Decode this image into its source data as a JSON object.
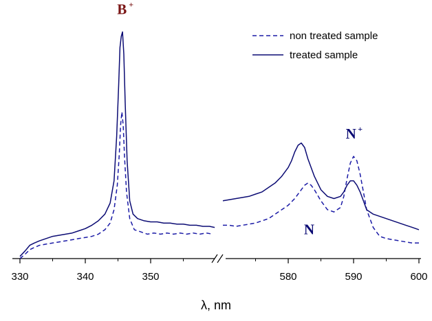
{
  "chart_data": {
    "type": "line",
    "title": "",
    "xlabel": "λ, nm",
    "ylabel": "",
    "axis_break": true,
    "segments": [
      {
        "xlim": [
          330,
          360
        ],
        "ticks": [
          330,
          340,
          350
        ]
      },
      {
        "xlim": [
          570,
          600
        ],
        "ticks": [
          580,
          590,
          600
        ]
      }
    ],
    "ylim": [
      0,
      100
    ],
    "legend_position": "top-right",
    "grid": false,
    "series": [
      {
        "name": "non treated sample",
        "style": "dashed",
        "color": "#1a1aa6",
        "segments": [
          {
            "x": [
              330.0,
              330.8,
              331.5,
              332.2,
              333.0,
              334.0,
              335.0,
              336.0,
              337.0,
              338.0,
              339.0,
              340.0,
              341.0,
              342.0,
              343.0,
              343.8,
              344.4,
              344.9,
              345.2,
              345.4,
              345.6,
              345.8,
              346.0,
              346.3,
              346.8,
              347.5,
              348.5,
              349.5,
              350.5,
              351.5,
              352.5,
              353.5,
              354.5,
              355.5,
              356.5,
              357.5,
              358.5,
              359.5
            ],
            "y": [
              0.0,
              2.0,
              4.0,
              5.0,
              6.0,
              6.5,
              7.0,
              7.5,
              8.0,
              8.5,
              9.0,
              9.5,
              10.0,
              11.0,
              13.0,
              16.0,
              22.0,
              33.0,
              47.0,
              60.0,
              66.0,
              60.0,
              46.0,
              30.0,
              18.0,
              13.0,
              12.0,
              11.0,
              11.5,
              11.0,
              11.5,
              11.0,
              11.5,
              11.0,
              11.5,
              11.0,
              11.5,
              11.0
            ]
          },
          {
            "x": [
              570.0,
              571.0,
              572.0,
              573.0,
              574.0,
              575.0,
              576.0,
              577.0,
              578.0,
              579.0,
              580.0,
              581.0,
              582.0,
              582.5,
              583.0,
              583.5,
              584.0,
              585.0,
              586.0,
              587.0,
              588.0,
              588.5,
              589.0,
              589.5,
              590.0,
              590.5,
              591.0,
              591.5,
              592.0,
              593.0,
              594.0,
              595.0,
              596.0,
              597.0,
              598.0,
              599.0,
              600.0
            ],
            "y": [
              15.0,
              15.0,
              14.5,
              15.0,
              15.5,
              16.0,
              17.0,
              18.0,
              20.0,
              22.0,
              24.0,
              27.0,
              31.0,
              33.0,
              34.0,
              33.0,
              31.0,
              26.0,
              22.0,
              21.0,
              23.0,
              28.0,
              36.0,
              43.0,
              46.0,
              44.0,
              38.0,
              30.0,
              22.0,
              14.0,
              10.0,
              9.0,
              8.5,
              8.0,
              7.5,
              7.0,
              7.0
            ]
          }
        ]
      },
      {
        "name": "treated sample",
        "style": "solid",
        "color": "#0a0a73",
        "segments": [
          {
            "x": [
              330.0,
              330.8,
              331.5,
              332.2,
              333.0,
              334.0,
              335.0,
              336.0,
              337.0,
              338.0,
              339.0,
              340.0,
              341.0,
              342.0,
              343.0,
              343.8,
              344.4,
              344.8,
              345.1,
              345.3,
              345.5,
              345.7,
              345.9,
              346.1,
              346.4,
              346.8,
              347.3,
              348.0,
              349.0,
              350.0,
              351.0,
              352.0,
              353.0,
              354.0,
              355.0,
              356.0,
              357.0,
              358.0,
              359.0,
              359.8
            ],
            "y": [
              1.0,
              3.5,
              6.0,
              7.0,
              8.0,
              9.0,
              10.0,
              10.5,
              11.0,
              11.5,
              12.5,
              13.5,
              15.0,
              17.0,
              20.0,
              25.0,
              35.0,
              55.0,
              78.0,
              95.0,
              100.0,
              102.0,
              92.0,
              70.0,
              44.0,
              26.0,
              20.0,
              18.0,
              17.0,
              16.5,
              16.5,
              16.0,
              16.0,
              15.5,
              15.5,
              15.0,
              15.0,
              14.5,
              14.5,
              14.0
            ]
          },
          {
            "x": [
              570.0,
              571.0,
              572.0,
              573.0,
              574.0,
              575.0,
              576.0,
              577.0,
              578.0,
              579.0,
              580.0,
              580.5,
              581.0,
              581.5,
              582.0,
              582.5,
              583.0,
              584.0,
              585.0,
              586.0,
              587.0,
              588.0,
              588.5,
              589.0,
              589.5,
              590.0,
              590.5,
              591.0,
              591.5,
              592.0,
              593.0,
              594.0,
              595.0,
              596.0,
              597.0,
              598.0,
              599.0,
              600.0
            ],
            "y": [
              26.0,
              26.5,
              27.0,
              27.5,
              28.0,
              29.0,
              30.0,
              32.0,
              34.0,
              37.0,
              41.0,
              44.0,
              48.0,
              51.0,
              52.0,
              50.0,
              45.0,
              37.0,
              31.0,
              28.0,
              27.0,
              28.0,
              30.0,
              33.0,
              35.0,
              35.0,
              33.0,
              30.0,
              26.0,
              22.0,
              20.0,
              19.0,
              18.0,
              17.0,
              16.0,
              15.0,
              14.0,
              13.0
            ]
          }
        ]
      }
    ],
    "annotations": [
      {
        "label": "B",
        "sup": "+",
        "x": 345.6,
        "y": 110,
        "color": "#7a1515"
      },
      {
        "label": "N",
        "sup": "+",
        "x": 589.6,
        "y": 54,
        "color": "#0a0a73"
      },
      {
        "label": "N",
        "sup": "",
        "x": 583.2,
        "y": 11,
        "color": "#0a0a73"
      }
    ]
  }
}
